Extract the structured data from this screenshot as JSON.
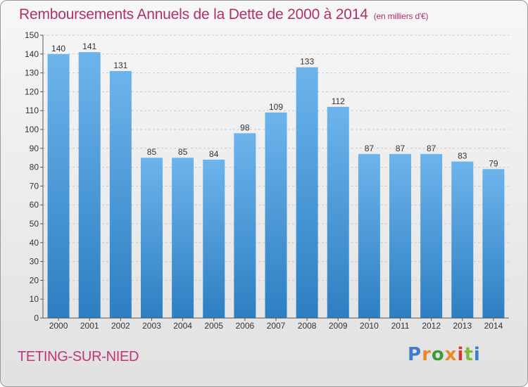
{
  "title": "Remboursements Annuels de la Dette de 2000 à 2014",
  "unit": "(en milliers d'€)",
  "commune": "TETING-SUR-NIED",
  "brand": "Proxiti",
  "brand_colors": [
    "#3d7fc4",
    "#e8892b",
    "#3d9a3d",
    "#d23a3a",
    "#7bbd3a"
  ],
  "colors": {
    "bar_top": "#6db4ec",
    "bar_bottom": "#2d7fc2",
    "title": "#b0306a",
    "grid": "#c9c9c9"
  },
  "chart_data": {
    "type": "bar",
    "title": "Remboursements Annuels de la Dette de 2000 à 2014",
    "ylabel": "(en milliers d'€)",
    "xlabel": "",
    "categories": [
      "2000",
      "2001",
      "2002",
      "2003",
      "2004",
      "2005",
      "2006",
      "2007",
      "2008",
      "2009",
      "2010",
      "2011",
      "2012",
      "2013",
      "2014"
    ],
    "values": [
      140,
      141,
      131,
      85,
      85,
      84,
      98,
      109,
      133,
      112,
      87,
      87,
      87,
      83,
      79
    ],
    "ylim": [
      0,
      150
    ],
    "yticks": [
      0,
      10,
      20,
      30,
      40,
      50,
      60,
      70,
      80,
      90,
      100,
      110,
      120,
      130,
      140,
      150
    ],
    "grid": true
  }
}
